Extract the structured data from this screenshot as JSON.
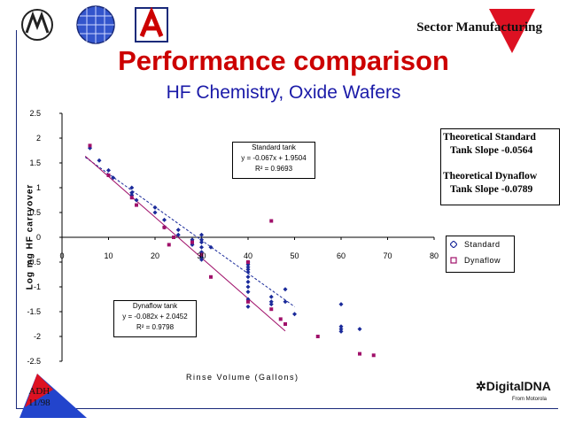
{
  "header": {
    "sector_label": "Sector Manufacturing",
    "title": "Performance comparison",
    "subtitle": "HF Chemistry, Oxide Wafers"
  },
  "logos": [
    "motorola-logo",
    "grid-globe-logo",
    "university-a-logo"
  ],
  "info_box": {
    "line1": "Theoretical Standard",
    "line2": "Tank Slope  -0.0564",
    "line3": "Theoretical Dynaflow",
    "line4": "Tank Slope  -0.0789"
  },
  "footer": {
    "author": "ADH",
    "date": "11/98",
    "brand": "DigitalDNA",
    "brand_sub": "From Motorola"
  },
  "chart_data": {
    "type": "scatter",
    "xlabel": "Rinse Volume (Gallons)",
    "ylabel": "Log mg HF carryover",
    "xlim": [
      0,
      80
    ],
    "ylim": [
      -2.5,
      2.5
    ],
    "x_ticks": [
      "0",
      "10",
      "20",
      "30",
      "40",
      "50",
      "60",
      "70",
      "80"
    ],
    "y_ticks": [
      "2.5",
      "2",
      "1.5",
      "1",
      "0.5",
      "0",
      "-0.5",
      "-1",
      "-1.5",
      "-2",
      "-2.5"
    ],
    "legend": {
      "position": "right",
      "entries": [
        "Standard",
        "Dynaflow"
      ]
    },
    "colors": {
      "standard": "#1a2a9a",
      "dynaflow": "#a0106a",
      "frame": "#1a2a7a",
      "title": "#cc0000",
      "subtitle": "#1a1aa8"
    },
    "series": [
      {
        "name": "Standard",
        "marker": "diamond",
        "x": [
          6,
          8,
          10,
          11,
          15,
          15,
          15,
          16,
          20,
          20,
          22,
          22,
          25,
          25,
          28,
          28,
          30,
          30,
          30,
          30,
          30,
          30,
          30,
          32,
          40,
          40,
          40,
          40,
          40,
          40,
          40,
          40,
          40,
          40,
          40,
          45,
          45,
          45,
          48,
          48,
          50,
          60,
          60,
          60,
          60,
          64
        ],
        "y": [
          1.8,
          1.55,
          1.35,
          1.2,
          1.0,
          0.9,
          0.85,
          0.75,
          0.6,
          0.5,
          0.35,
          0.2,
          0.15,
          0.05,
          -0.05,
          -0.15,
          0.05,
          -0.05,
          -0.1,
          -0.2,
          -0.3,
          -0.4,
          -0.45,
          -0.2,
          -0.5,
          -0.55,
          -0.6,
          -0.65,
          -0.7,
          -0.8,
          -0.9,
          -1.0,
          -1.1,
          -1.25,
          -1.4,
          -1.2,
          -1.3,
          -1.35,
          -1.05,
          -1.3,
          -1.55,
          -1.35,
          -1.8,
          -1.85,
          -1.9,
          -1.85
        ]
      },
      {
        "name": "Dynaflow",
        "marker": "square",
        "x": [
          6,
          10,
          15,
          16,
          22,
          23,
          24,
          28,
          30,
          32,
          40,
          40,
          45,
          45,
          47,
          48,
          55,
          64,
          67
        ],
        "y": [
          1.85,
          1.25,
          0.8,
          0.65,
          0.2,
          -0.15,
          0.0,
          -0.1,
          -0.35,
          -0.8,
          -0.5,
          -1.3,
          0.33,
          -1.45,
          -1.65,
          -1.75,
          -2.0,
          -2.35,
          -2.38
        ]
      }
    ],
    "trendlines": [
      {
        "name": "Standard tank",
        "slope": -0.067,
        "intercept": 1.9504,
        "x_range": [
          5,
          50
        ],
        "equation": "y = -0.067x + 1.9504",
        "r2": "R² = 0.9693"
      },
      {
        "name": "Dynaflow tank",
        "slope": -0.082,
        "intercept": 2.0452,
        "x_range": [
          5,
          48
        ],
        "equation": "y = -0.082x + 2.0452",
        "r2": "R² = 0.9798"
      }
    ]
  }
}
